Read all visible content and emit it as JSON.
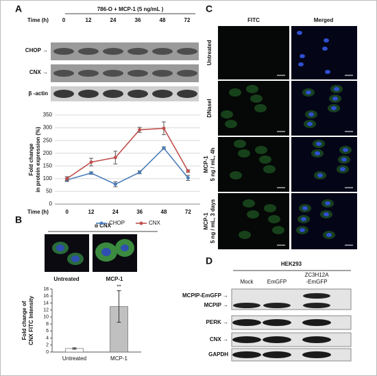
{
  "panels": {
    "A": {
      "letter": "A",
      "header": "786-O + MCP-1 (5 ng/mL )",
      "time_label": "Time (h)",
      "blot_labels": [
        "CHOP →",
        "CNX →",
        "β -actin"
      ]
    },
    "B": {
      "letter": "B",
      "header": "α CNX",
      "image_labels": [
        "Untreated",
        "MCP-1"
      ]
    },
    "C": {
      "letter": "C",
      "columns": [
        "FITC",
        "Merged"
      ],
      "rows": [
        [
          "Untreated"
        ],
        [
          "DNaseI"
        ],
        [
          "MCP-1",
          "5 ng / mL, 4h"
        ],
        [
          "MCP-1",
          "5 ng / mL, 3 days"
        ]
      ]
    },
    "D": {
      "letter": "D",
      "header": "HEK293",
      "columns": [
        [
          "Mock"
        ],
        [
          "EmGFP"
        ],
        [
          "ZC3H12A",
          "-EmGFP"
        ]
      ],
      "blot_labels": [
        "MCPIP-EmGFP →",
        "MCPIP →",
        "PERK →",
        "CNX →",
        "GAPDH"
      ]
    }
  },
  "chart_data": [
    {
      "type": "line",
      "xlabel": "Time (h)",
      "ylabel": [
        "Fold change",
        "in protein expression (%)"
      ],
      "categories": [
        "0",
        "12",
        "24",
        "36",
        "48",
        "72"
      ],
      "series": [
        {
          "name": "CHOP",
          "color": "#4a7ebb",
          "values": [
            95,
            122,
            78,
            125,
            220,
            103
          ],
          "errors": [
            6,
            5,
            10,
            6,
            5,
            10
          ]
        },
        {
          "name": "CNX",
          "color": "#c0504d",
          "values": [
            100,
            165,
            183,
            292,
            298,
            130
          ],
          "errors": [
            8,
            15,
            25,
            10,
            25,
            5
          ]
        }
      ],
      "ylim": [
        0,
        350
      ],
      "yticks": [
        0,
        50,
        100,
        150,
        200,
        250,
        300,
        350
      ],
      "grid": true,
      "legend": "bottom"
    },
    {
      "type": "bar",
      "ylabel": [
        "Fold change of",
        "CNX FITC Intensity"
      ],
      "categories": [
        "Untreated",
        "MCP-1"
      ],
      "values": [
        1,
        13
      ],
      "errors": [
        0.2,
        4.5
      ],
      "colors": [
        "#ffffff",
        "#c0c0c0"
      ],
      "annotation": "**",
      "ylim": [
        0,
        18
      ],
      "yticks": [
        0,
        2,
        4,
        6,
        8,
        10,
        12,
        14,
        16,
        18
      ],
      "grid": false
    }
  ]
}
